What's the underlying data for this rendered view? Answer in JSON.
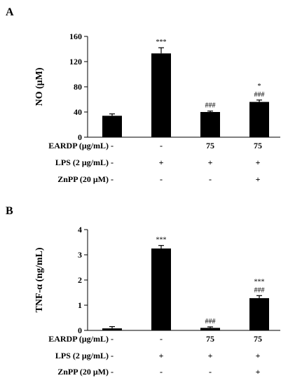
{
  "chart_data": [
    {
      "panel": "A",
      "type": "bar",
      "ylabel": "NO (μM)",
      "ylim": [
        0,
        160
      ],
      "yticks": [
        "0",
        "40",
        "80",
        "120",
        "160"
      ],
      "values": [
        34,
        133,
        40,
        56
      ],
      "errors": [
        3,
        9,
        1.5,
        3
      ],
      "significance": [
        {
          "bar": 1,
          "lines": [
            "***"
          ]
        },
        {
          "bar": 2,
          "lines": [
            "###"
          ]
        },
        {
          "bar": 3,
          "lines": [
            "*",
            "###"
          ]
        }
      ],
      "conditions": [
        {
          "label": "EARDP (μg/mL)",
          "marks": [
            "-",
            "-",
            "75",
            "75"
          ]
        },
        {
          "label": "LPS (2 μg/mL)",
          "marks": [
            "-",
            "+",
            "+",
            "+"
          ]
        },
        {
          "label": "ZnPP (20 μM)",
          "marks": [
            "-",
            "-",
            "-",
            "+"
          ]
        }
      ]
    },
    {
      "panel": "B",
      "type": "bar",
      "ylabel": "TNF-α (ng/mL)",
      "ylim": [
        0,
        4
      ],
      "yticks": [
        "0",
        "1",
        "2",
        "3",
        "4"
      ],
      "values": [
        0.08,
        3.25,
        0.1,
        1.28
      ],
      "errors": [
        0.07,
        0.12,
        0.04,
        0.1
      ],
      "significance": [
        {
          "bar": 1,
          "lines": [
            "***"
          ]
        },
        {
          "bar": 2,
          "lines": [
            "###"
          ]
        },
        {
          "bar": 3,
          "lines": [
            "***",
            "###"
          ]
        }
      ],
      "conditions": [
        {
          "label": "EARDP (μg/mL)",
          "marks": [
            "-",
            "-",
            "75",
            "75"
          ]
        },
        {
          "label": "LPS (2 μg/mL)",
          "marks": [
            "-",
            "+",
            "+",
            "+"
          ]
        },
        {
          "label": "ZnPP (20 μM)",
          "marks": [
            "-",
            "-",
            "-",
            "+"
          ]
        }
      ]
    }
  ]
}
